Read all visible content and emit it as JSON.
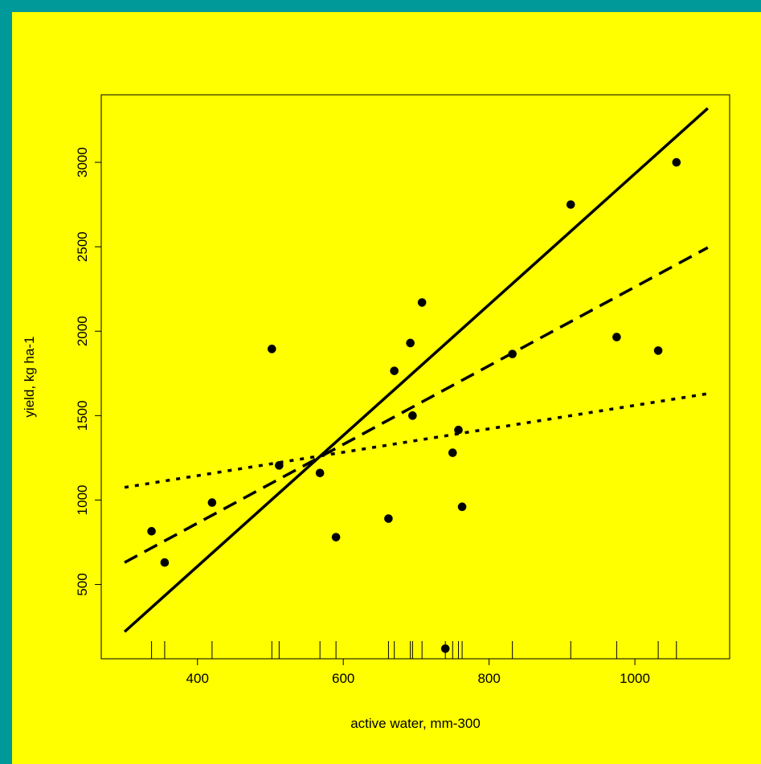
{
  "colors": {
    "outer_background": "#009999",
    "plot_background": "#ffff00",
    "ink": "#000000"
  },
  "chart_data": {
    "type": "scatter",
    "title": "",
    "xlabel": "active water, mm-300",
    "ylabel": "yield, kg ha-1",
    "xlim": [
      268,
      1130
    ],
    "ylim": [
      60,
      3400
    ],
    "xticks": [
      400,
      600,
      800,
      1000
    ],
    "yticks": [
      500,
      1000,
      1500,
      2000,
      2500,
      3000
    ],
    "rug": true,
    "points": [
      {
        "x": 337,
        "y": 815
      },
      {
        "x": 355,
        "y": 630
      },
      {
        "x": 420,
        "y": 985
      },
      {
        "x": 502,
        "y": 1895
      },
      {
        "x": 512,
        "y": 1205
      },
      {
        "x": 568,
        "y": 1160
      },
      {
        "x": 590,
        "y": 780
      },
      {
        "x": 662,
        "y": 890
      },
      {
        "x": 670,
        "y": 1765
      },
      {
        "x": 692,
        "y": 1930
      },
      {
        "x": 695,
        "y": 1500
      },
      {
        "x": 708,
        "y": 2170
      },
      {
        "x": 740,
        "y": 120
      },
      {
        "x": 750,
        "y": 1280
      },
      {
        "x": 758,
        "y": 1415
      },
      {
        "x": 763,
        "y": 960
      },
      {
        "x": 832,
        "y": 1865
      },
      {
        "x": 912,
        "y": 2750
      },
      {
        "x": 975,
        "y": 1965
      },
      {
        "x": 1032,
        "y": 1885
      },
      {
        "x": 1057,
        "y": 3000
      }
    ],
    "lines": [
      {
        "style": "solid",
        "x": [
          300,
          1100
        ],
        "y": [
          220,
          3320
        ]
      },
      {
        "style": "dashed",
        "x": [
          300,
          1100
        ],
        "y": [
          630,
          2495
        ]
      },
      {
        "style": "dotted",
        "x": [
          300,
          1100
        ],
        "y": [
          1075,
          1630
        ]
      }
    ]
  }
}
